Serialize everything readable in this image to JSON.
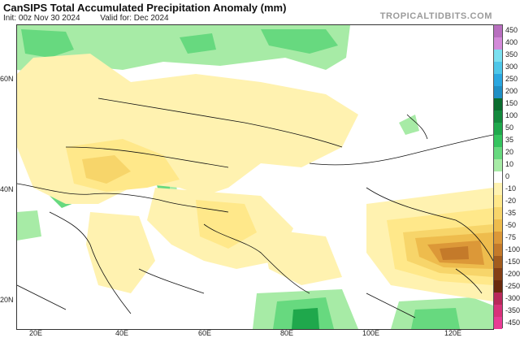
{
  "header": {
    "title": "CanSIPS Total Accumulated Precipitation Anomaly (mm)",
    "init": "Init: 00z Nov 30 2024",
    "valid": "Valid for: Dec 2024",
    "brand": "TROPICALTIDBITS.COM"
  },
  "axes": {
    "lat_labels": [
      "60N",
      "40N",
      "20N"
    ],
    "lon_labels": [
      "20E",
      "40E",
      "60E",
      "80E",
      "100E",
      "120E"
    ]
  },
  "legend": {
    "labels": [
      "450",
      "400",
      "350",
      "300",
      "250",
      "200",
      "150",
      "100",
      "50",
      "35",
      "20",
      "10",
      "0",
      "-10",
      "-20",
      "-35",
      "-50",
      "-75",
      "-100",
      "-150",
      "-200",
      "-250",
      "-300",
      "-350",
      "-450"
    ],
    "colors": [
      "#b86fbf",
      "#d38ad9",
      "#7be0f0",
      "#4ec7e9",
      "#2aa7e0",
      "#1f8fc4",
      "#0a6d2f",
      "#13893d",
      "#1fa84c",
      "#35c45f",
      "#67d97f",
      "#a7eba6",
      "#ffffff",
      "#fff2b0",
      "#ffe88a",
      "#f7d56a",
      "#eebc4d",
      "#dc9838",
      "#c47a2a",
      "#a35c1d",
      "#853f14",
      "#6a2a0d",
      "#b8295a",
      "#d8327a",
      "#e83c94"
    ]
  }
}
